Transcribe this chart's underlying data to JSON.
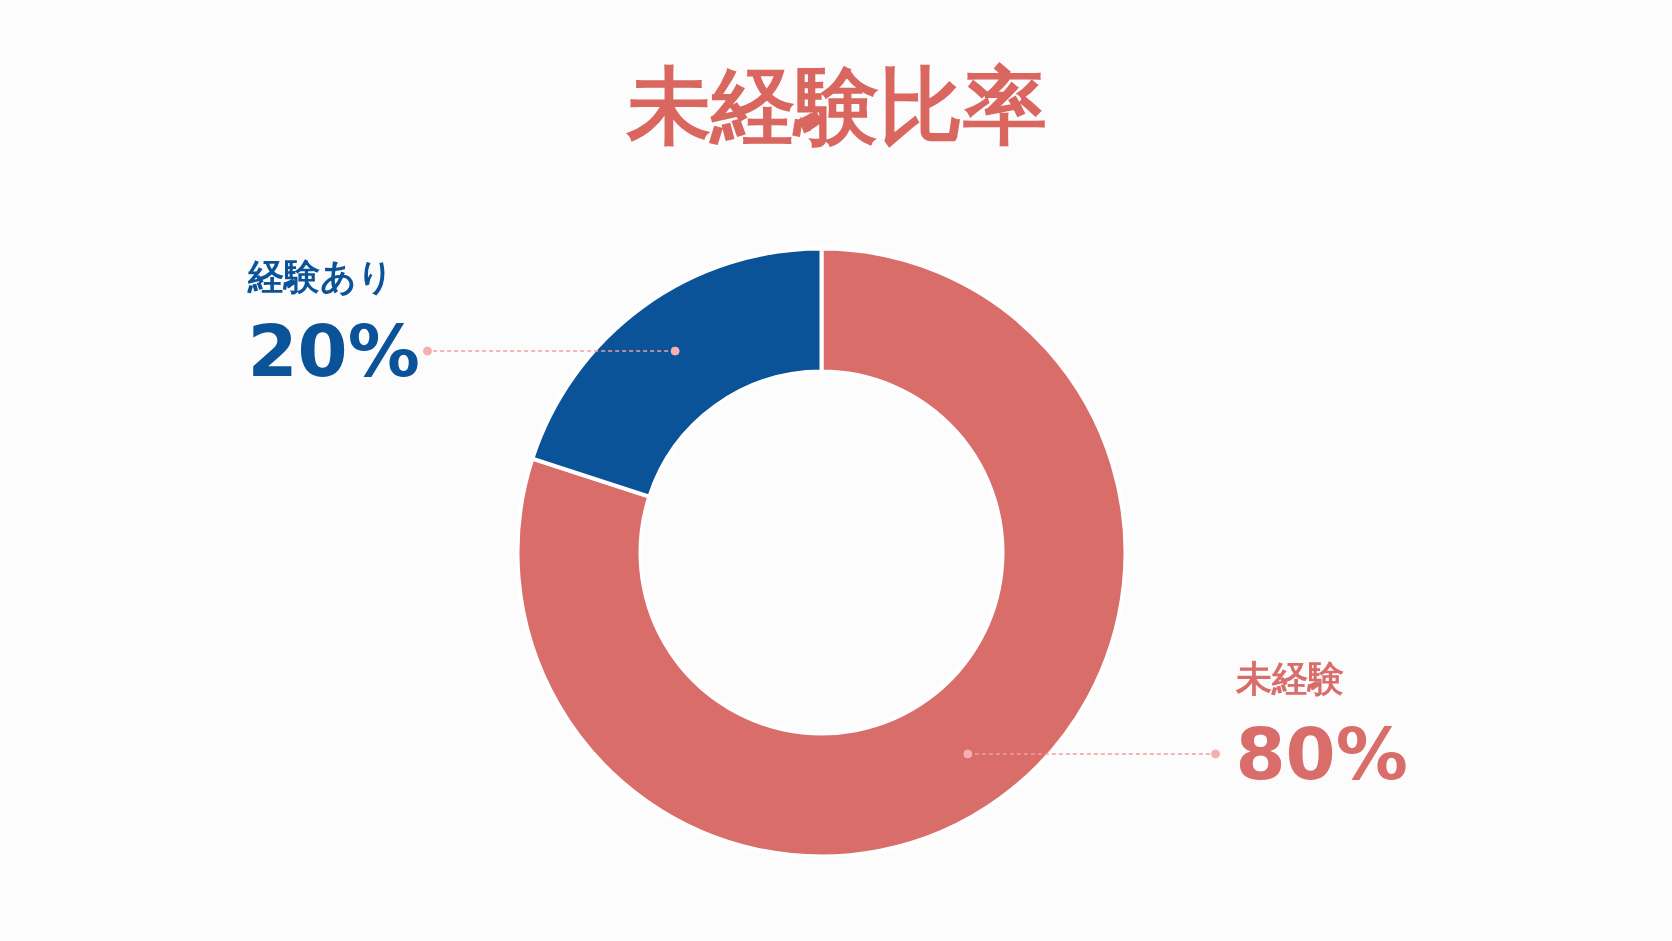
{
  "chart_data": {
    "type": "donut",
    "title": "未経験比率",
    "categories": [
      "未経験",
      "経験あり"
    ],
    "values": [
      80,
      20
    ],
    "colors": [
      "#d96d6a",
      "#0b5398"
    ],
    "value_labels": [
      "80%",
      "20%"
    ]
  }
}
